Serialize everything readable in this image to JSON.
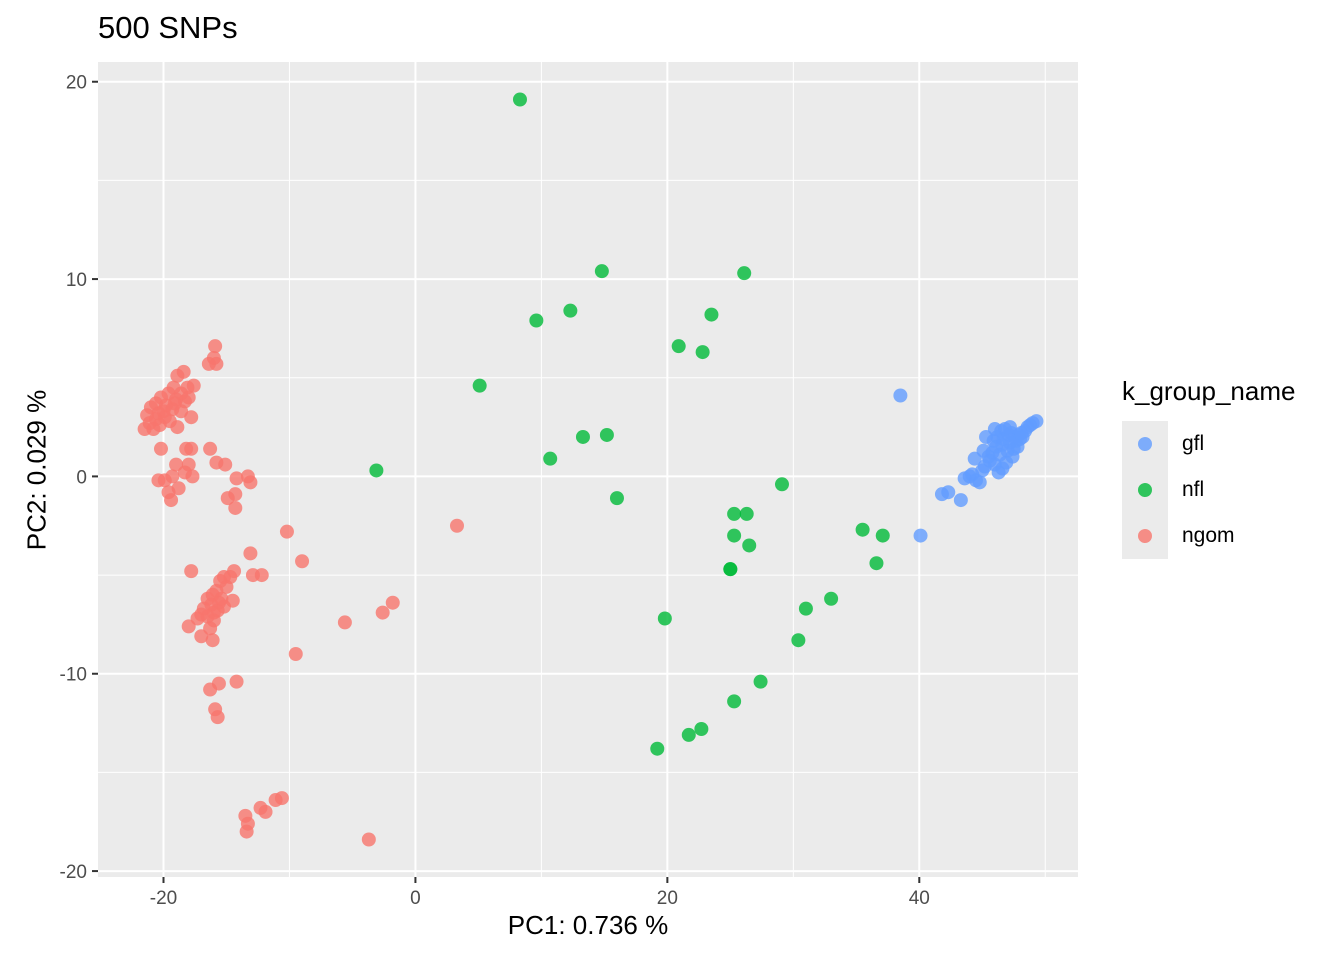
{
  "chart_data": {
    "type": "scatter",
    "title": "500 SNPs",
    "xlabel": "PC1: 0.736 %",
    "ylabel": "PC2: 0.029 %",
    "xlim": [
      -25.2,
      52.6
    ],
    "ylim": [
      -20.3,
      21.0
    ],
    "x_ticks": [
      -20,
      0,
      20,
      40
    ],
    "y_ticks": [
      -20,
      -10,
      0,
      10,
      20
    ],
    "grid": true,
    "legend": {
      "title": "k_group_name",
      "placement": "right"
    },
    "series": [
      {
        "name": "gfl",
        "color": "#619CFF",
        "points": [
          [
            38.5,
            4.1
          ],
          [
            40.1,
            -3.0
          ],
          [
            41.8,
            -0.9
          ],
          [
            42.3,
            -0.8
          ],
          [
            43.3,
            -1.2
          ],
          [
            43.6,
            -0.1
          ],
          [
            44.0,
            0.0
          ],
          [
            44.2,
            0.1
          ],
          [
            44.4,
            0.9
          ],
          [
            44.5,
            -0.2
          ],
          [
            44.8,
            -0.3
          ],
          [
            45.0,
            0.3
          ],
          [
            45.2,
            0.5
          ],
          [
            45.3,
            2.0
          ],
          [
            45.5,
            1.0
          ],
          [
            45.6,
            0.8
          ],
          [
            45.8,
            1.2
          ],
          [
            45.9,
            1.8
          ],
          [
            46.0,
            0.6
          ],
          [
            46.1,
            1.5
          ],
          [
            46.2,
            2.0
          ],
          [
            46.3,
            0.2
          ],
          [
            46.4,
            1.1
          ],
          [
            46.5,
            2.3
          ],
          [
            46.6,
            1.6
          ],
          [
            46.7,
            1.9
          ],
          [
            46.8,
            2.4
          ],
          [
            46.9,
            0.7
          ],
          [
            47.0,
            1.3
          ],
          [
            47.1,
            2.1
          ],
          [
            47.2,
            1.7
          ],
          [
            47.3,
            2.2
          ],
          [
            47.4,
            1.0
          ],
          [
            47.5,
            1.4
          ],
          [
            47.6,
            2.0
          ],
          [
            47.7,
            1.8
          ],
          [
            47.8,
            1.5
          ],
          [
            47.9,
            2.1
          ],
          [
            48.0,
            1.9
          ],
          [
            48.2,
            2.0
          ],
          [
            48.4,
            2.3
          ],
          [
            48.6,
            2.5
          ],
          [
            48.8,
            2.6
          ],
          [
            49.0,
            2.7
          ],
          [
            49.3,
            2.8
          ],
          [
            45.1,
            1.3
          ],
          [
            46.0,
            2.4
          ],
          [
            46.6,
            0.4
          ],
          [
            47.2,
            2.5
          ],
          [
            48.1,
            2.2
          ]
        ]
      },
      {
        "name": "nfl",
        "color": "#00BA38",
        "points": [
          [
            8.3,
            19.1
          ],
          [
            14.8,
            10.4
          ],
          [
            26.1,
            10.3
          ],
          [
            12.3,
            8.4
          ],
          [
            23.5,
            8.2
          ],
          [
            9.6,
            7.9
          ],
          [
            20.9,
            6.6
          ],
          [
            22.8,
            6.3
          ],
          [
            5.1,
            4.6
          ],
          [
            15.2,
            2.1
          ],
          [
            13.3,
            2.0
          ],
          [
            10.7,
            0.9
          ],
          [
            -3.1,
            0.3
          ],
          [
            16.0,
            -1.1
          ],
          [
            29.1,
            -0.4
          ],
          [
            25.3,
            -1.9
          ],
          [
            26.3,
            -1.9
          ],
          [
            25.3,
            -3.0
          ],
          [
            26.5,
            -3.5
          ],
          [
            35.5,
            -2.7
          ],
          [
            37.1,
            -3.0
          ],
          [
            25.0,
            -4.7
          ],
          [
            25.0,
            -4.7
          ],
          [
            36.6,
            -4.4
          ],
          [
            33.0,
            -6.2
          ],
          [
            31.0,
            -6.7
          ],
          [
            19.8,
            -7.2
          ],
          [
            30.4,
            -8.3
          ],
          [
            27.4,
            -10.4
          ],
          [
            25.3,
            -11.4
          ],
          [
            22.7,
            -12.8
          ],
          [
            21.7,
            -13.1
          ],
          [
            19.2,
            -13.8
          ]
        ]
      },
      {
        "name": "ngom",
        "color": "#F8766D",
        "points": [
          [
            -15.9,
            6.6
          ],
          [
            -16.0,
            6.0
          ],
          [
            -15.8,
            5.7
          ],
          [
            -16.4,
            5.7
          ],
          [
            -18.4,
            5.3
          ],
          [
            -18.9,
            5.1
          ],
          [
            -17.6,
            4.6
          ],
          [
            -18.1,
            4.5
          ],
          [
            -19.2,
            4.5
          ],
          [
            -19.6,
            4.2
          ],
          [
            -18.6,
            4.2
          ],
          [
            -20.2,
            4.0
          ],
          [
            -19.0,
            3.9
          ],
          [
            -18.3,
            3.8
          ],
          [
            -20.6,
            3.7
          ],
          [
            -19.8,
            3.6
          ],
          [
            -21.0,
            3.5
          ],
          [
            -19.3,
            3.4
          ],
          [
            -18.6,
            3.3
          ],
          [
            -20.4,
            3.2
          ],
          [
            -21.3,
            3.1
          ],
          [
            -19.9,
            3.0
          ],
          [
            -17.8,
            3.0
          ],
          [
            -20.6,
            2.9
          ],
          [
            -19.5,
            2.8
          ],
          [
            -21.1,
            2.7
          ],
          [
            -20.3,
            2.6
          ],
          [
            -18.9,
            2.5
          ],
          [
            -21.5,
            2.4
          ],
          [
            -20.8,
            2.4
          ],
          [
            -19.1,
            3.7
          ],
          [
            -18.0,
            4.0
          ],
          [
            -20.0,
            3.3
          ],
          [
            -16.3,
            1.4
          ],
          [
            -18.2,
            1.4
          ],
          [
            -17.8,
            1.4
          ],
          [
            -20.2,
            1.4
          ],
          [
            -15.8,
            0.7
          ],
          [
            -15.1,
            0.6
          ],
          [
            -18.0,
            0.6
          ],
          [
            -19.0,
            0.6
          ],
          [
            -18.3,
            0.2
          ],
          [
            -19.3,
            0.0
          ],
          [
            -17.7,
            0.0
          ],
          [
            -13.3,
            0.0
          ],
          [
            -14.2,
            -0.1
          ],
          [
            -20.4,
            -0.2
          ],
          [
            -19.9,
            -0.2
          ],
          [
            -13.1,
            -0.3
          ],
          [
            -18.8,
            -0.6
          ],
          [
            -19.6,
            -0.8
          ],
          [
            -14.3,
            -0.9
          ],
          [
            -14.9,
            -1.1
          ],
          [
            -19.4,
            -1.2
          ],
          [
            -14.3,
            -1.6
          ],
          [
            -10.2,
            -2.8
          ],
          [
            3.3,
            -2.5
          ],
          [
            -13.1,
            -3.9
          ],
          [
            -9.0,
            -4.3
          ],
          [
            -17.8,
            -4.8
          ],
          [
            -14.4,
            -4.8
          ],
          [
            -14.7,
            -5.1
          ],
          [
            -15.2,
            -5.1
          ],
          [
            -12.2,
            -5.0
          ],
          [
            -12.9,
            -5.0
          ],
          [
            -15.5,
            -5.3
          ],
          [
            -15.0,
            -5.6
          ],
          [
            -15.8,
            -5.8
          ],
          [
            -16.1,
            -6.0
          ],
          [
            -16.5,
            -6.2
          ],
          [
            -14.5,
            -6.3
          ],
          [
            -15.6,
            -6.4
          ],
          [
            -16.2,
            -6.5
          ],
          [
            -16.8,
            -6.7
          ],
          [
            -15.7,
            -6.8
          ],
          [
            -16.0,
            -6.9
          ],
          [
            -17.0,
            -7.0
          ],
          [
            -16.5,
            -7.1
          ],
          [
            -17.3,
            -7.2
          ],
          [
            -15.2,
            -6.6
          ],
          [
            -15.4,
            -6.2
          ],
          [
            -16.0,
            -7.3
          ],
          [
            -1.8,
            -6.4
          ],
          [
            -2.6,
            -6.9
          ],
          [
            -5.6,
            -7.4
          ],
          [
            -18.0,
            -7.6
          ],
          [
            -17.0,
            -8.1
          ],
          [
            -16.3,
            -7.7
          ],
          [
            -16.1,
            -8.3
          ],
          [
            -9.5,
            -9.0
          ],
          [
            -14.2,
            -10.4
          ],
          [
            -15.6,
            -10.5
          ],
          [
            -16.3,
            -10.8
          ],
          [
            -15.9,
            -11.8
          ],
          [
            -15.7,
            -12.2
          ],
          [
            -10.6,
            -16.3
          ],
          [
            -11.1,
            -16.4
          ],
          [
            -12.3,
            -16.8
          ],
          [
            -11.9,
            -17.0
          ],
          [
            -13.5,
            -17.2
          ],
          [
            -13.3,
            -17.6
          ],
          [
            -13.4,
            -18.0
          ],
          [
            -3.7,
            -18.4
          ]
        ]
      }
    ]
  }
}
